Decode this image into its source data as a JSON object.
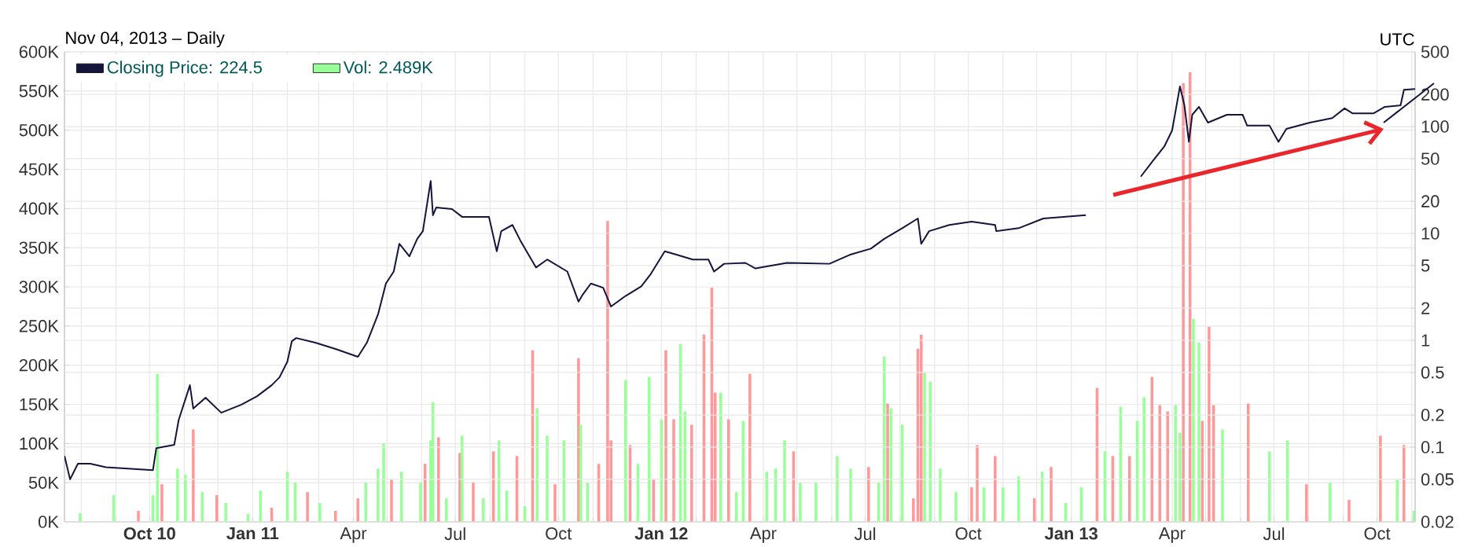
{
  "chart_data": {
    "type": "bar",
    "subtitle": "Nov 04, 2013 – Daily",
    "annotations": [
      "UTC"
    ],
    "xlim": [
      "2010-07-17",
      "2013-11-04"
    ],
    "xticks": [
      {
        "value": "2010-08-01",
        "label": null
      },
      {
        "value": "2010-09-01",
        "label": null
      },
      {
        "value": "2010-10-01",
        "label": "**Oct 10**"
      },
      {
        "value": "2010-11-01",
        "label": null
      },
      {
        "value": "2010-12-01",
        "label": null
      },
      {
        "value": "2011-01-01",
        "label": "**Jan 11**"
      },
      {
        "value": "2011-02-01",
        "label": null
      },
      {
        "value": "2011-03-01",
        "label": null
      },
      {
        "value": "2011-04-01",
        "label": "Apr"
      },
      {
        "value": "2011-05-01",
        "label": null
      },
      {
        "value": "2011-06-01",
        "label": null
      },
      {
        "value": "2011-07-01",
        "label": "Jul"
      },
      {
        "value": "2011-08-01",
        "label": null
      },
      {
        "value": "2011-09-01",
        "label": null
      },
      {
        "value": "2011-10-01",
        "label": "Oct"
      },
      {
        "value": "2011-11-01",
        "label": null
      },
      {
        "value": "2011-12-01",
        "label": null
      },
      {
        "value": "2012-01-01",
        "label": "**Jan 12**"
      },
      {
        "value": "2012-02-01",
        "label": null
      },
      {
        "value": "2012-03-01",
        "label": null
      },
      {
        "value": "2012-04-01",
        "label": "Apr"
      },
      {
        "value": "2012-05-01",
        "label": null
      },
      {
        "value": "2012-06-01",
        "label": null
      },
      {
        "value": "2012-07-01",
        "label": "Jul"
      },
      {
        "value": "2012-08-01",
        "label": null
      },
      {
        "value": "2012-09-01",
        "label": null
      },
      {
        "value": "2012-10-01",
        "label": "Oct"
      },
      {
        "value": "2012-11-01",
        "label": null
      },
      {
        "value": "2012-12-01",
        "label": null
      },
      {
        "value": "2013-01-01",
        "label": "**Jan 13**"
      },
      {
        "value": "2013-02-01",
        "label": null
      },
      {
        "value": "2013-03-01",
        "label": null
      },
      {
        "value": "2013-04-01",
        "label": "Apr"
      },
      {
        "value": "2013-05-01",
        "label": null
      },
      {
        "value": "2013-06-01",
        "label": null
      },
      {
        "value": "2013-07-01",
        "label": "Jul"
      },
      {
        "value": "2013-08-01",
        "label": null
      },
      {
        "value": "2013-09-01",
        "label": null
      },
      {
        "value": "2013-10-01",
        "label": "Oct"
      },
      {
        "value": "2013-11-01",
        "label": null
      }
    ],
    "ylim": [
      0,
      600
    ],
    "yticks": [
      {
        "value": 0,
        "label": "0K"
      },
      {
        "value": 50,
        "label": "50K"
      },
      {
        "value": 100,
        "label": "100K"
      },
      {
        "value": 150,
        "label": "150K"
      },
      {
        "value": 200,
        "label": "200K"
      },
      {
        "value": 250,
        "label": "250K"
      },
      {
        "value": 300,
        "label": "300K"
      },
      {
        "value": 350,
        "label": "350K"
      },
      {
        "value": 400,
        "label": "400K"
      },
      {
        "value": 450,
        "label": "450K"
      },
      {
        "value": 500,
        "label": "500K"
      },
      {
        "value": 550,
        "label": "550K"
      },
      {
        "value": 600,
        "label": "600K"
      }
    ],
    "y2lim": [
      0.02,
      500
    ],
    "y2ticks": [
      0.02,
      0.05,
      0.1,
      0.2,
      0.5,
      1,
      2,
      5,
      10,
      20,
      50,
      100,
      200,
      500
    ],
    "log": "y2",
    "grid": true,
    "legend": "top left",
    "series": [
      {
        "type": "line",
        "axis": "y2",
        "name": "Closing Price: 224.5",
        "color": "#14143c",
        "x": [
          "2010-07-17",
          "2010-07-22",
          "2010-07-29",
          "2010-08-09",
          "2010-08-23",
          "2010-10-04",
          "2010-10-07",
          "2010-10-23",
          "2010-10-27",
          "2010-11-06",
          "2010-11-09",
          "2010-11-20",
          "2010-12-04",
          "2010-12-22",
          "2011-01-05",
          "2011-01-18",
          "2011-01-25",
          "2011-02-01",
          "2011-02-05",
          "2011-02-09",
          "2011-02-26",
          "2011-03-16",
          "2011-04-05",
          "2011-04-13",
          "2011-04-23",
          "2011-04-30",
          "2011-05-07",
          "2011-05-12",
          "2011-05-21",
          "2011-05-28",
          "2011-06-02",
          "2011-06-09",
          "2011-06-11",
          "2011-06-14",
          "2011-06-28",
          "2011-07-07",
          "2011-07-31",
          "2011-08-07",
          "2011-08-11",
          "2011-08-21",
          "2011-08-28",
          "2011-09-11",
          "2011-09-21",
          "2011-10-09",
          "2011-10-19",
          "2011-10-23",
          "2011-10-30",
          "2011-11-10",
          "2011-11-17",
          "2011-11-30",
          "2011-12-14",
          "2011-12-22",
          "2012-01-04",
          "2012-01-15",
          "2012-01-29",
          "2012-02-12",
          "2012-02-17",
          "2012-02-26",
          "2012-03-16",
          "2012-03-25",
          "2012-04-22",
          "2012-05-30",
          "2012-06-17",
          "2012-07-06",
          "2012-07-18",
          "2012-08-03",
          "2012-08-17",
          "2012-08-20",
          "2012-08-27",
          "2012-09-14",
          "2012-10-04",
          "2012-10-25",
          "2012-10-26",
          "2012-11-15",
          "2012-12-07",
          "2013-01-14",
          "2013-02-08",
          "2013-03-04",
          "2013-03-15",
          "2013-03-25",
          "2013-04-01",
          "2013-04-08",
          "2013-04-12",
          "2013-04-16",
          "2013-04-19",
          "2013-04-25",
          "2013-05-03",
          "2013-05-20",
          "2013-06-03",
          "2013-06-07",
          "2013-06-27",
          "2013-07-05",
          "2013-07-12",
          "2013-08-02",
          "2013-08-22",
          "2013-09-02",
          "2013-09-09",
          "2013-09-28",
          "2013-10-08",
          "2013-10-22",
          "2013-10-25",
          "2013-11-04"
        ],
        "values": [
          0.083,
          0.05,
          0.07,
          0.07,
          0.065,
          0.061,
          0.098,
          0.105,
          0.18,
          0.38,
          0.23,
          0.29,
          0.21,
          0.25,
          0.3,
          0.38,
          0.45,
          0.63,
          0.98,
          1.05,
          0.95,
          0.83,
          0.7,
          0.95,
          1.75,
          3.4,
          4.4,
          8,
          6.1,
          8.9,
          10.5,
          31,
          14.8,
          17.5,
          16.9,
          14.3,
          14.3,
          6.8,
          10.5,
          12,
          8.6,
          4.8,
          5.7,
          4.4,
          2.3,
          2.7,
          3.4,
          3.1,
          2.07,
          2.6,
          3.2,
          4.1,
          6.8,
          6.3,
          5.7,
          5.7,
          4.4,
          5.2,
          5.3,
          4.7,
          5.3,
          5.2,
          6.3,
          7.2,
          8.9,
          11.2,
          13.8,
          8,
          10.5,
          12,
          12.9,
          12,
          10.5,
          11.2,
          13.8,
          14.8,
          null,
          34,
          48,
          65,
          92,
          237,
          158,
          72,
          129,
          153,
          109,
          129,
          129,
          102,
          102,
          72,
          95,
          109,
          120,
          148,
          133,
          133,
          153,
          158,
          221,
          224.5
        ]
      },
      {
        "name": "Vol: 2.489K",
        "color": "#99ff99",
        "x": [
          "2010-07-31",
          "2010-08-30",
          "2010-09-21",
          "2010-10-04",
          "2010-10-08",
          "2010-10-12",
          "2010-10-26",
          "2010-11-02",
          "2010-11-09",
          "2010-11-17",
          "2010-11-30",
          "2010-12-08",
          "2010-12-28",
          "2011-01-08",
          "2011-01-18",
          "2011-02-01",
          "2011-02-08",
          "2011-02-19",
          "2011-03-02",
          "2011-03-16",
          "2011-04-05",
          "2011-04-12",
          "2011-04-23",
          "2011-04-28",
          "2011-05-05",
          "2011-05-14",
          "2011-05-31",
          "2011-06-04",
          "2011-06-09",
          "2011-06-11",
          "2011-06-16",
          "2011-06-23",
          "2011-07-05",
          "2011-07-07",
          "2011-07-17",
          "2011-07-26",
          "2011-08-04",
          "2011-08-09",
          "2011-08-16",
          "2011-08-25",
          "2011-09-01",
          "2011-09-08",
          "2011-09-12",
          "2011-09-21",
          "2011-09-28",
          "2011-10-06",
          "2011-10-19",
          "2011-10-21",
          "2011-10-27",
          "2011-11-06",
          "2011-11-14",
          "2011-11-17",
          "2011-11-30",
          "2011-12-04",
          "2011-12-11",
          "2011-12-21",
          "2011-12-25",
          "2012-01-01",
          "2012-01-05",
          "2012-01-12",
          "2012-01-18",
          "2012-01-22",
          "2012-01-28",
          "2012-02-08",
          "2012-02-15",
          "2012-02-18",
          "2012-02-23",
          "2012-03-01",
          "2012-03-08",
          "2012-03-14",
          "2012-03-20",
          "2012-04-04",
          "2012-04-12",
          "2012-04-20",
          "2012-04-28",
          "2012-05-04",
          "2012-05-18",
          "2012-06-06",
          "2012-06-18",
          "2012-07-04",
          "2012-07-13",
          "2012-07-18",
          "2012-07-21",
          "2012-07-24",
          "2012-08-03",
          "2012-08-13",
          "2012-08-17",
          "2012-08-20",
          "2012-08-23",
          "2012-08-28",
          "2012-09-06",
          "2012-09-20",
          "2012-10-04",
          "2012-10-09",
          "2012-10-15",
          "2012-10-25",
          "2012-11-01",
          "2012-11-15",
          "2012-11-29",
          "2012-12-06",
          "2012-12-14",
          "2012-12-27",
          "2013-01-10",
          "2013-01-24",
          "2013-01-31",
          "2013-02-07",
          "2013-02-14",
          "2013-02-22",
          "2013-03-01",
          "2013-03-07",
          "2013-03-14",
          "2013-03-21",
          "2013-03-28",
          "2013-04-04",
          "2013-04-08",
          "2013-04-11",
          "2013-04-17",
          "2013-04-20",
          "2013-04-25",
          "2013-04-28",
          "2013-05-04",
          "2013-05-08",
          "2013-05-16",
          "2013-06-08",
          "2013-06-27",
          "2013-07-13",
          "2013-07-30",
          "2013-08-20",
          "2013-09-06",
          "2013-10-04",
          "2013-10-19",
          "2013-10-25",
          "2013-11-03"
        ],
        "values": [
          11,
          34,
          14,
          34,
          189,
          48,
          68,
          60,
          118,
          38,
          34,
          24,
          10,
          40,
          18,
          64,
          50,
          38,
          24,
          14,
          30,
          50,
          68,
          100,
          54,
          64,
          50,
          74,
          104,
          153,
          108,
          30,
          88,
          110,
          50,
          30,
          90,
          104,
          40,
          84,
          20,
          219,
          145,
          110,
          48,
          104,
          209,
          124,
          50,
          74,
          384,
          104,
          181,
          98,
          74,
          185,
          54,
          131,
          219,
          131,
          227,
          141,
          124,
          239,
          299,
          165,
          165,
          131,
          38,
          129,
          189,
          64,
          68,
          104,
          90,
          50,
          50,
          84,
          68,
          70,
          50,
          211,
          151,
          145,
          124,
          30,
          221,
          239,
          191,
          179,
          68,
          38,
          44,
          98,
          44,
          84,
          44,
          58,
          30,
          64,
          70,
          24,
          44,
          171,
          90,
          84,
          147,
          84,
          129,
          159,
          185,
          149,
          141,
          149,
          114,
          560,
          574,
          259,
          229,
          129,
          249,
          149,
          118,
          151,
          90,
          104,
          48,
          50,
          28,
          110,
          54,
          98,
          14
        ],
        "colors": [
          "#99ff99",
          "#99ff99",
          "#ff9999",
          "#99ff99",
          "#99ff99",
          "#ff9999",
          "#99ff99",
          "#99ff99",
          "#ff9999",
          "#99ff99",
          "#ff9999",
          "#99ff99",
          "#99ff99",
          "#99ff99",
          "#ff9999",
          "#99ff99",
          "#99ff99",
          "#ff9999",
          "#99ff99",
          "#ff9999",
          "#ff9999",
          "#99ff99",
          "#99ff99",
          "#99ff99",
          "#ff9999",
          "#99ff99",
          "#99ff99",
          "#ff9999",
          "#99ff99",
          "#99ff99",
          "#ff9999",
          "#99ff99",
          "#ff9999",
          "#99ff99",
          "#ff9999",
          "#99ff99",
          "#ff9999",
          "#99ff99",
          "#99ff99",
          "#ff9999",
          "#99ff99",
          "#ff9999",
          "#99ff99",
          "#99ff99",
          "#ff9999",
          "#99ff99",
          "#ff9999",
          "#99ff99",
          "#99ff99",
          "#ff9999",
          "#ff9999",
          "#ff9999",
          "#99ff99",
          "#ff9999",
          "#99ff99",
          "#99ff99",
          "#ff9999",
          "#99ff99",
          "#ff9999",
          "#ff9999",
          "#99ff99",
          "#99ff99",
          "#ff9999",
          "#ff9999",
          "#ff9999",
          "#ff9999",
          "#99ff99",
          "#ff9999",
          "#99ff99",
          "#99ff99",
          "#ff9999",
          "#99ff99",
          "#99ff99",
          "#99ff99",
          "#ff9999",
          "#99ff99",
          "#99ff99",
          "#99ff99",
          "#99ff99",
          "#ff9999",
          "#99ff99",
          "#99ff99",
          "#ff9999",
          "#99ff99",
          "#99ff99",
          "#ff9999",
          "#ff9999",
          "#ff9999",
          "#99ff99",
          "#99ff99",
          "#99ff99",
          "#99ff99",
          "#ff9999",
          "#ff9999",
          "#99ff99",
          "#ff9999",
          "#99ff99",
          "#99ff99",
          "#ff9999",
          "#99ff99",
          "#ff9999",
          "#99ff99",
          "#99ff99",
          "#ff9999",
          "#99ff99",
          "#ff9999",
          "#99ff99",
          "#ff9999",
          "#99ff99",
          "#99ff99",
          "#ff9999",
          "#ff9999",
          "#ff9999",
          "#99ff99",
          "#99ff99",
          "#ff9999",
          "#ff9999",
          "#99ff99",
          "#99ff99",
          "#ff9999",
          "#ff9999",
          "#ff9999",
          "#99ff99",
          "#ff9999",
          "#99ff99",
          "#99ff99",
          "#ff9999",
          "#99ff99",
          "#ff9999",
          "#ff9999",
          "#99ff99",
          "#ff9999",
          "#99ff99"
        ]
      }
    ]
  }
}
